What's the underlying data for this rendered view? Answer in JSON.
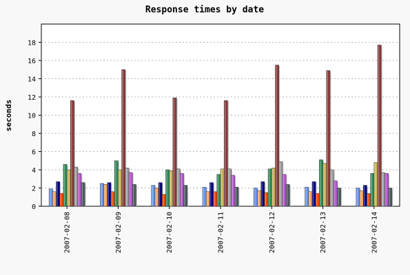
{
  "chart_data": {
    "type": "bar",
    "title": "Response times by date",
    "xlabel": "",
    "ylabel": "seconds",
    "ylim": [
      0,
      20
    ],
    "yticks": [
      0,
      2,
      4,
      6,
      8,
      10,
      12,
      14,
      16,
      18
    ],
    "grid": true,
    "categories": [
      "2007-02-08",
      "2007-02-09",
      "2007-02-10",
      "2007-02-11",
      "2007-02-12",
      "2007-02-13",
      "2007-02-14"
    ],
    "series": [
      {
        "color": "#6495ed",
        "values": [
          1.9,
          2.5,
          2.3,
          2.1,
          2.0,
          2.1,
          2.0
        ]
      },
      {
        "color": "#f4a460",
        "values": [
          1.6,
          2.4,
          2.0,
          1.6,
          1.7,
          1.6,
          1.7
        ]
      },
      {
        "color": "#000080",
        "values": [
          2.7,
          2.6,
          2.6,
          2.6,
          2.7,
          2.7,
          2.3
        ]
      },
      {
        "color": "#ff4500",
        "values": [
          1.4,
          1.6,
          1.3,
          1.6,
          1.5,
          1.4,
          1.4
        ]
      },
      {
        "color": "#2e8b57",
        "values": [
          4.6,
          5.0,
          4.0,
          3.5,
          4.1,
          5.1,
          3.6
        ]
      },
      {
        "color": "#c8b45a",
        "values": [
          4.0,
          4.0,
          3.9,
          4.1,
          4.2,
          4.7,
          4.8
        ]
      },
      {
        "color": "#8b3a3a",
        "values": [
          11.6,
          15.0,
          11.9,
          11.6,
          15.5,
          14.9,
          17.7
        ]
      },
      {
        "color": "#a0a0a0",
        "values": [
          4.3,
          4.2,
          4.1,
          4.1,
          4.9,
          4.0,
          3.7
        ]
      },
      {
        "color": "#ba55d3",
        "values": [
          3.6,
          3.7,
          3.6,
          3.4,
          3.5,
          2.8,
          3.6
        ]
      },
      {
        "color": "#4a5a60",
        "values": [
          2.6,
          2.4,
          2.3,
          2.1,
          2.4,
          2.0,
          2.0
        ]
      }
    ]
  }
}
